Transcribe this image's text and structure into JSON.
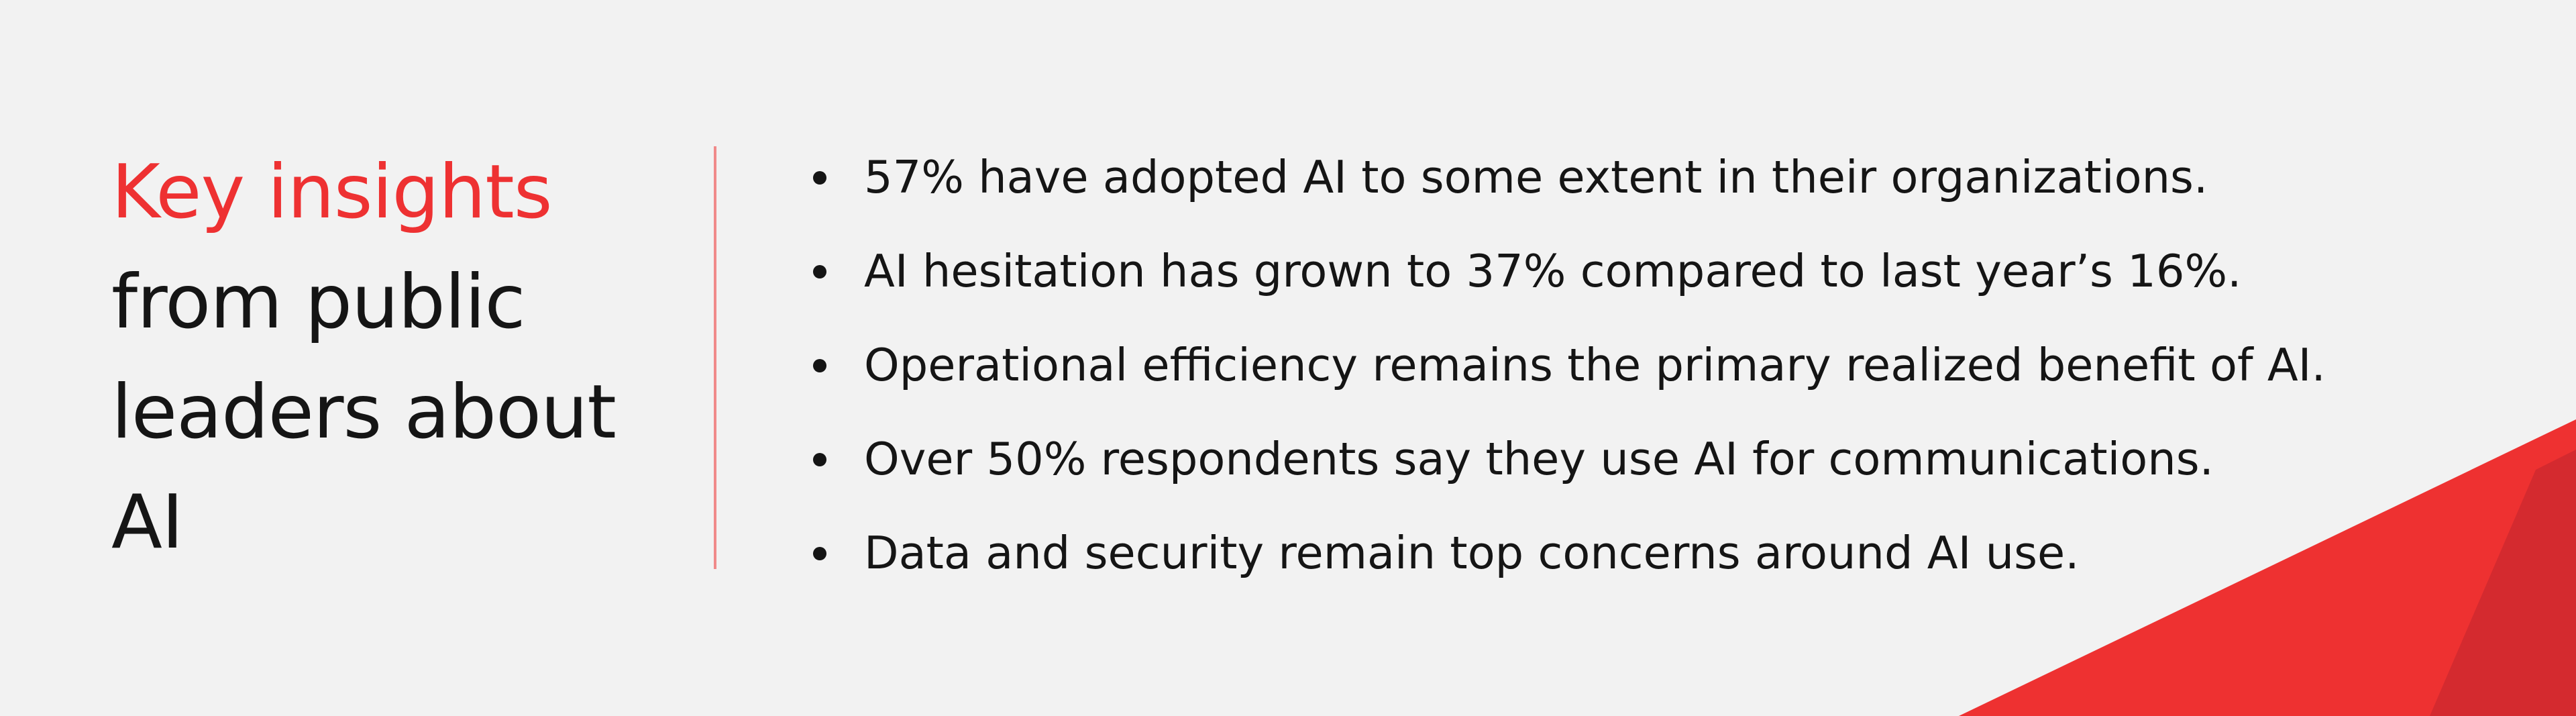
{
  "heading": {
    "accent": "Key insights",
    "rest": "from public leaders about AI"
  },
  "insights": [
    "57% have adopted AI to some extent in their organizations.",
    "AI hesitation has grown to 37% compared to last year’s 16%.",
    "Operational efficiency remains the primary realized benefit of AI.",
    "Over 50% respondents say they use AI for communications.",
    "Data and security remain top concerns around AI use."
  ],
  "colors": {
    "background": "#f2f2f2",
    "accent": "#ee3132",
    "accent_dark": "#d12a2f",
    "divider": "#f08a8a",
    "text": "#151515"
  }
}
